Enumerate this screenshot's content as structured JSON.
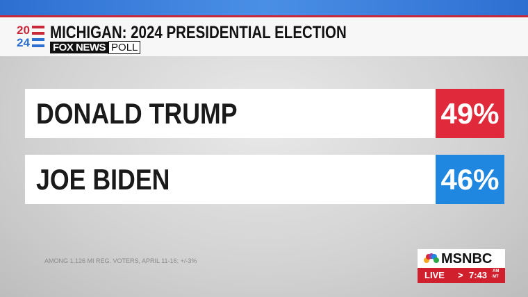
{
  "header": {
    "year_top": "20",
    "year_bottom": "24",
    "title": "MICHIGAN: 2024 PRESIDENTIAL ELECTION",
    "source": "FOX NEWS",
    "source_suffix": "POLL"
  },
  "table": {
    "rows": [
      [
        "DONALD TRUMP",
        "49%"
      ],
      [
        "JOE BIDEN",
        "46%"
      ]
    ]
  },
  "footnote": "AMONG 1,126 MI REG. VOTERS, APRIL 11-16; +/-3%",
  "network": {
    "name": "MSNBC",
    "live": "LIVE",
    "arrow": ">",
    "time": "7:43",
    "am": "AM",
    "zone": "MT"
  }
}
